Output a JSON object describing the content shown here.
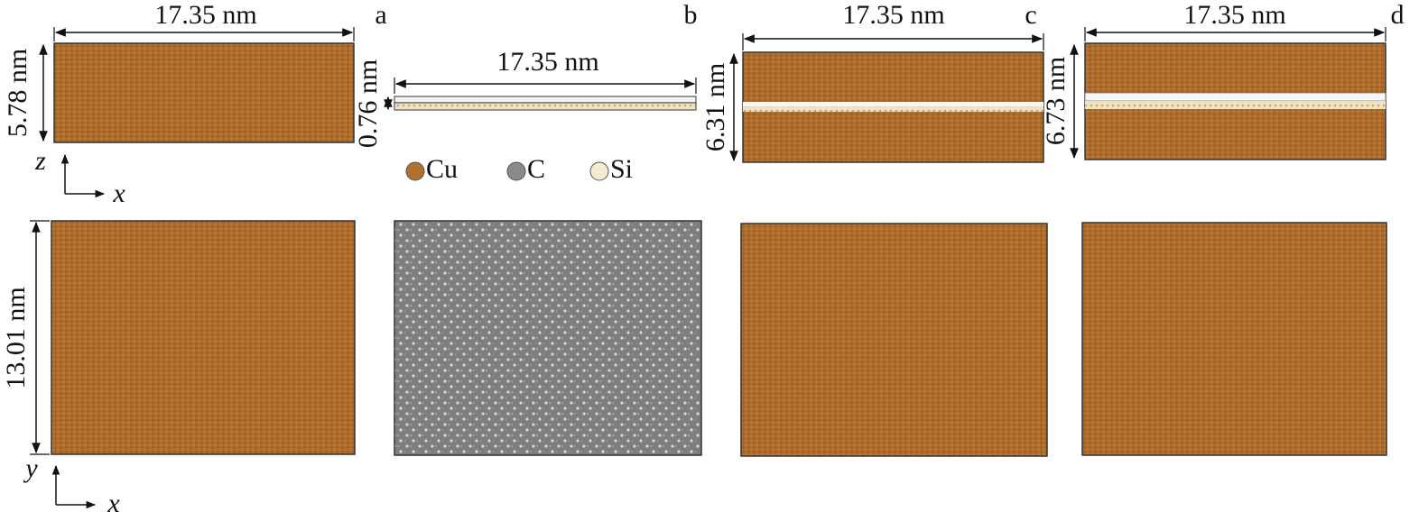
{
  "panels": [
    {
      "label": "a",
      "width_label": "17.35 nm",
      "height_label": "5.78 nm"
    },
    {
      "label": "b",
      "width_label": "17.35 nm",
      "height_label": "0.76 nm"
    },
    {
      "label": "c",
      "width_label": "17.35 nm",
      "height_label": "6.31 nm"
    },
    {
      "label": "d",
      "width_label": "17.35 nm",
      "height_label": "6.73 nm"
    }
  ],
  "plan_height_label": "13.01 nm",
  "legend": [
    {
      "name": "Cu"
    },
    {
      "name": "C"
    },
    {
      "name": "Si"
    }
  ],
  "axes": {
    "top": {
      "vertical": "z",
      "horizontal": "x"
    },
    "bottom": {
      "vertical": "y",
      "horizontal": "x"
    }
  }
}
